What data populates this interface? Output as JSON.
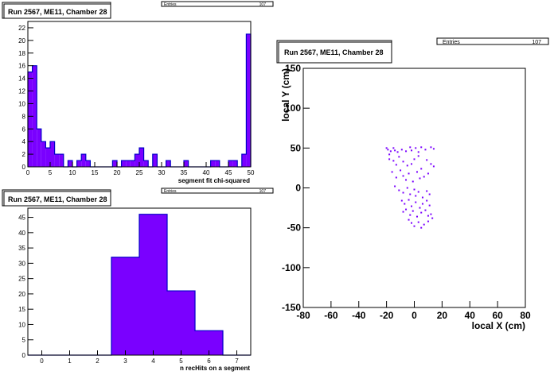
{
  "colors": {
    "fill": "#7a00ff",
    "outline": "#0000c8",
    "axis": "#000000",
    "frame": "#000000",
    "background": "#ffffff"
  },
  "chart_data": [
    {
      "id": "chi2",
      "type": "bar",
      "title": "Run 2567, ME11, Chamber 28",
      "stats": {
        "label": "Entries",
        "value": "107"
      },
      "xlabel": "segment fit chi-squared",
      "ylabel": "",
      "xlim": [
        0,
        50
      ],
      "ylim": [
        0,
        23
      ],
      "x_ticks": [
        "0",
        "5",
        "10",
        "15",
        "20",
        "25",
        "30",
        "35",
        "40",
        "45",
        "50"
      ],
      "y_ticks": [
        "0",
        "2",
        "4",
        "6",
        "8",
        "10",
        "12",
        "14",
        "16",
        "18",
        "20",
        "22"
      ],
      "bin_width": 1,
      "values": [
        15,
        16,
        6,
        4,
        3,
        4,
        2,
        2,
        0,
        1,
        0,
        1,
        2,
        1,
        0,
        0,
        0,
        0,
        0,
        1,
        0,
        1,
        1,
        1,
        2,
        3,
        1,
        0,
        2,
        0,
        0,
        1,
        0,
        0,
        0,
        1,
        0,
        0,
        0,
        0,
        0,
        1,
        1,
        0,
        0,
        1,
        1,
        0,
        2,
        21
      ]
    },
    {
      "id": "nhits",
      "type": "bar",
      "title": "Run 2567, ME11, Chamber 28",
      "stats": {
        "label": "Entries",
        "value": "107"
      },
      "xlabel": "n recHits on a segment",
      "ylabel": "",
      "xlim": [
        -0.5,
        7.5
      ],
      "ylim": [
        0,
        48
      ],
      "x_ticks": [
        "0",
        "1",
        "2",
        "3",
        "4",
        "5",
        "6",
        "7"
      ],
      "y_ticks": [
        "0",
        "5",
        "10",
        "15",
        "20",
        "25",
        "30",
        "35",
        "40",
        "45"
      ],
      "bin_width": 1,
      "categories": [
        0,
        1,
        2,
        3,
        4,
        5,
        6,
        7
      ],
      "values": [
        0,
        0,
        0,
        32,
        46,
        21,
        8,
        0
      ]
    },
    {
      "id": "xy",
      "type": "scatter",
      "title": "Run 2567, ME11, Chamber 28",
      "stats": {
        "label": "Entries",
        "value": "107"
      },
      "xlabel": "local X (cm)",
      "ylabel": "local Y (cm)",
      "xlim": [
        -80,
        80
      ],
      "ylim": [
        -150,
        150
      ],
      "x_ticks": [
        "-80",
        "-60",
        "-40",
        "-20",
        "0",
        "20",
        "40",
        "60",
        "80"
      ],
      "y_ticks": [
        "-150",
        "-100",
        "-50",
        "0",
        "50",
        "100",
        "150"
      ],
      "points": [
        [
          -20,
          50
        ],
        [
          -19,
          48
        ],
        [
          -18,
          42
        ],
        [
          -17,
          46
        ],
        [
          -15,
          50
        ],
        [
          -14,
          47
        ],
        [
          -12,
          45
        ],
        [
          -9,
          48
        ],
        [
          -6,
          46
        ],
        [
          -3,
          51
        ],
        [
          -2,
          47
        ],
        [
          1,
          50
        ],
        [
          3,
          45
        ],
        [
          5,
          51
        ],
        [
          8,
          48
        ],
        [
          12,
          51
        ],
        [
          14,
          49
        ],
        [
          -18,
          36
        ],
        [
          -15,
          34
        ],
        [
          -13,
          29
        ],
        [
          -11,
          39
        ],
        [
          -8,
          33
        ],
        [
          -5,
          28
        ],
        [
          -2,
          30
        ],
        [
          0,
          36
        ],
        [
          3,
          40
        ],
        [
          5,
          24
        ],
        [
          9,
          35
        ],
        [
          12,
          30
        ],
        [
          14,
          27
        ],
        [
          -16,
          20
        ],
        [
          -13,
          13
        ],
        [
          -10,
          22
        ],
        [
          -8,
          15
        ],
        [
          -6,
          10
        ],
        [
          -4,
          18
        ],
        [
          -1,
          8
        ],
        [
          2,
          20
        ],
        [
          4,
          12
        ],
        [
          7,
          14
        ],
        [
          10,
          18
        ],
        [
          -14,
          2
        ],
        [
          -11,
          -3
        ],
        [
          -8,
          -6
        ],
        [
          -5,
          0
        ],
        [
          -3,
          -8
        ],
        [
          0,
          -2
        ],
        [
          1,
          -10
        ],
        [
          3,
          -5
        ],
        [
          6,
          -12
        ],
        [
          9,
          -4
        ],
        [
          11,
          -8
        ],
        [
          -9,
          -16
        ],
        [
          -7,
          -20
        ],
        [
          -4,
          -15
        ],
        [
          -2,
          -23
        ],
        [
          1,
          -18
        ],
        [
          4,
          -25
        ],
        [
          6,
          -20
        ],
        [
          9,
          -16
        ],
        [
          11,
          -22
        ],
        [
          -8,
          -30
        ],
        [
          -6,
          -27
        ],
        [
          -3,
          -34
        ],
        [
          -1,
          -29
        ],
        [
          2,
          -36
        ],
        [
          5,
          -31
        ],
        [
          8,
          -28
        ],
        [
          10,
          -35
        ],
        [
          12,
          -33
        ],
        [
          -4,
          -40
        ],
        [
          -2,
          -44
        ],
        [
          0,
          -48
        ],
        [
          3,
          -43
        ],
        [
          5,
          -50
        ],
        [
          7,
          -46
        ],
        [
          10,
          -42
        ],
        [
          13,
          -38
        ]
      ]
    }
  ]
}
